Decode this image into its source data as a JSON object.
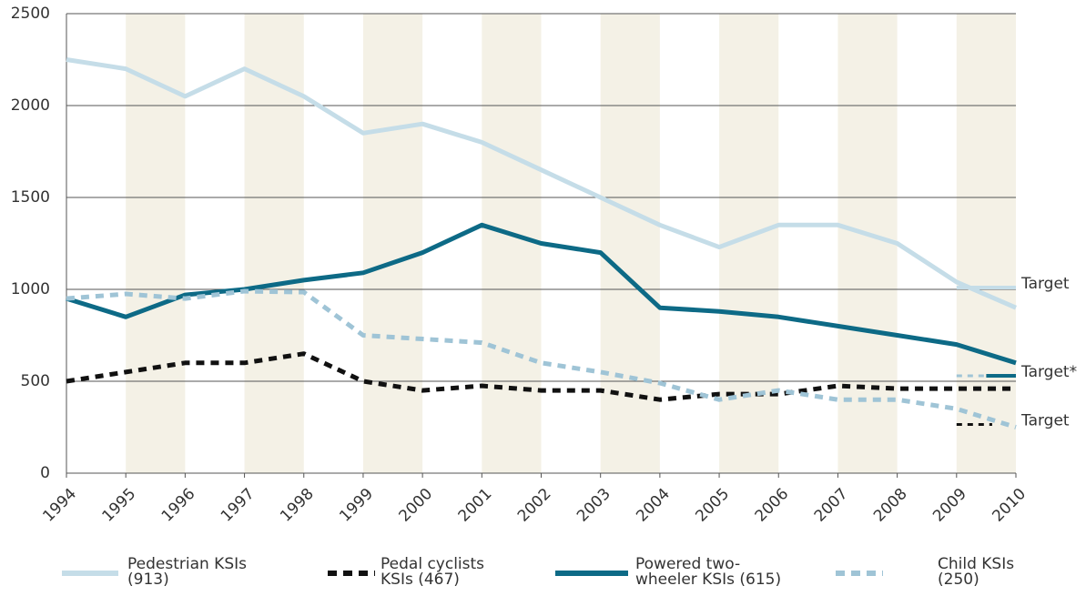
{
  "chart_data": {
    "type": "line",
    "x": [
      1994,
      1995,
      1996,
      1997,
      1998,
      1999,
      2000,
      2001,
      2002,
      2003,
      2004,
      2005,
      2006,
      2007,
      2008,
      2009,
      2010
    ],
    "xlim": [
      1994,
      2010
    ],
    "xticks": [
      1994,
      1995,
      1996,
      1997,
      1998,
      1999,
      2000,
      2001,
      2002,
      2003,
      2004,
      2005,
      2006,
      2007,
      2008,
      2009,
      2010
    ],
    "ylim": [
      0,
      2500
    ],
    "yticks": [
      0,
      500,
      1000,
      1500,
      2000,
      2500
    ],
    "grid": true,
    "series": [
      {
        "name": "Pedestrian KSIs\n(913)",
        "color": "#c5dde8",
        "dashed": false,
        "values": [
          2250,
          2200,
          2050,
          2200,
          2050,
          1850,
          1900,
          1800,
          1650,
          1500,
          1350,
          1230,
          1350,
          1350,
          1250,
          1040,
          900
        ]
      },
      {
        "name": "Pedal cyclists\nKSIs (467)",
        "color": "#111111",
        "dashed": true,
        "values": [
          500,
          550,
          600,
          600,
          650,
          500,
          450,
          475,
          450,
          450,
          400,
          430,
          430,
          475,
          460,
          460,
          460
        ]
      },
      {
        "name": "Powered two-\nwheeler KSIs (615)",
        "color": "#0d6a86",
        "dashed": false,
        "values": [
          950,
          850,
          970,
          1000,
          1050,
          1090,
          1200,
          1350,
          1250,
          1200,
          900,
          880,
          850,
          800,
          750,
          700,
          600
        ]
      },
      {
        "name": "Child KSIs\n(250)",
        "color": "#9fc4d6",
        "dashed": true,
        "values": [
          950,
          975,
          950,
          990,
          985,
          750,
          730,
          710,
          600,
          550,
          490,
          400,
          450,
          400,
          400,
          350,
          250
        ]
      }
    ],
    "targets": [
      {
        "label": "Target",
        "value": 1010,
        "from": 2009,
        "to": 2010,
        "color": "#c5dde8",
        "dashed": false
      },
      {
        "label": "Target*",
        "value": 530,
        "from": 2009.5,
        "to": 2010,
        "color": "#0d6a86",
        "dashed": false
      },
      {
        "value": 530,
        "from": 2009,
        "to": 2009.5,
        "color": "#9fc4d6",
        "dashed": true
      },
      {
        "label": "Target",
        "value": 265,
        "from": 2009,
        "to": 2009.6,
        "color": "#111111",
        "dashed": true
      }
    ]
  }
}
